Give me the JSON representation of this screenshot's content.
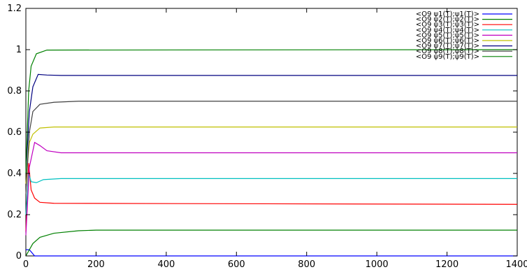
{
  "chart_data": {
    "type": "line",
    "title": "",
    "xlabel": "",
    "ylabel": "",
    "xlim": [
      0,
      1400
    ],
    "ylim": [
      0,
      1.2
    ],
    "xticks": [
      0,
      200,
      400,
      600,
      800,
      1000,
      1200,
      1400
    ],
    "yticks": [
      0,
      0.2,
      0.4,
      0.6,
      0.8,
      1,
      1.2
    ],
    "xtick_labels": [
      "0",
      "200",
      "400",
      "600",
      "800",
      "1000",
      "1200",
      "1400"
    ],
    "ytick_labels": [
      "0",
      "0.2",
      "0.4",
      "0.6",
      "0.8",
      "1",
      "1.2"
    ],
    "grid": false,
    "legend_position": "top-right",
    "series": [
      {
        "name": "<O9 ψ1(T);ψ1(T)>",
        "color": "#0000ff",
        "points": [
          [
            0,
            0.03
          ],
          [
            10,
            0.03
          ],
          [
            25,
            0.0
          ],
          [
            1400,
            0.0
          ]
        ]
      },
      {
        "name": "<O9 ψ2(T);ψ2(T)>",
        "color": "#008000",
        "points": [
          [
            0,
            0.0
          ],
          [
            20,
            0.06
          ],
          [
            40,
            0.09
          ],
          [
            80,
            0.11
          ],
          [
            150,
            0.122
          ],
          [
            200,
            0.125
          ],
          [
            1400,
            0.125
          ]
        ]
      },
      {
        "name": "<O9 ψ3(T);ψ3(T)>",
        "color": "#ff0000",
        "points": [
          [
            0,
            0.12
          ],
          [
            8,
            0.45
          ],
          [
            15,
            0.32
          ],
          [
            25,
            0.28
          ],
          [
            40,
            0.26
          ],
          [
            80,
            0.255
          ],
          [
            1400,
            0.25
          ]
        ]
      },
      {
        "name": "<O9 ψ4(T);ψ4(T)>",
        "color": "#00c0c0",
        "points": [
          [
            0,
            0.2
          ],
          [
            8,
            0.4
          ],
          [
            15,
            0.36
          ],
          [
            30,
            0.355
          ],
          [
            50,
            0.37
          ],
          [
            100,
            0.375
          ],
          [
            1400,
            0.375
          ]
        ]
      },
      {
        "name": "<O9 ψ5(T);ψ5(T)>",
        "color": "#c000c0",
        "points": [
          [
            0,
            0.1
          ],
          [
            10,
            0.43
          ],
          [
            25,
            0.55
          ],
          [
            40,
            0.535
          ],
          [
            60,
            0.51
          ],
          [
            100,
            0.5
          ],
          [
            1400,
            0.5
          ]
        ]
      },
      {
        "name": "<O9 ψ6(T);ψ6(T)>",
        "color": "#c0c000",
        "points": [
          [
            0,
            0.35
          ],
          [
            10,
            0.55
          ],
          [
            20,
            0.59
          ],
          [
            40,
            0.62
          ],
          [
            80,
            0.625
          ],
          [
            1400,
            0.625
          ]
        ]
      },
      {
        "name": "<O9 ψ7(T);ψ7(T)>",
        "color": "#000080",
        "points": [
          [
            0,
            0.4
          ],
          [
            10,
            0.7
          ],
          [
            20,
            0.82
          ],
          [
            35,
            0.88
          ],
          [
            60,
            0.877
          ],
          [
            100,
            0.875
          ],
          [
            1400,
            0.875
          ]
        ]
      },
      {
        "name": "<O9 ψ8(T);ψ8(T)>",
        "color": "#404040",
        "points": [
          [
            0,
            0.3
          ],
          [
            10,
            0.6
          ],
          [
            20,
            0.7
          ],
          [
            40,
            0.735
          ],
          [
            80,
            0.745
          ],
          [
            150,
            0.75
          ],
          [
            1400,
            0.75
          ]
        ]
      },
      {
        "name": "<O9 ψ9(T);ψ9(T)>",
        "color": "#008000",
        "points": [
          [
            0,
            0.4
          ],
          [
            8,
            0.8
          ],
          [
            15,
            0.92
          ],
          [
            30,
            0.98
          ],
          [
            60,
            0.998
          ],
          [
            1400,
            1.0
          ]
        ]
      }
    ]
  }
}
